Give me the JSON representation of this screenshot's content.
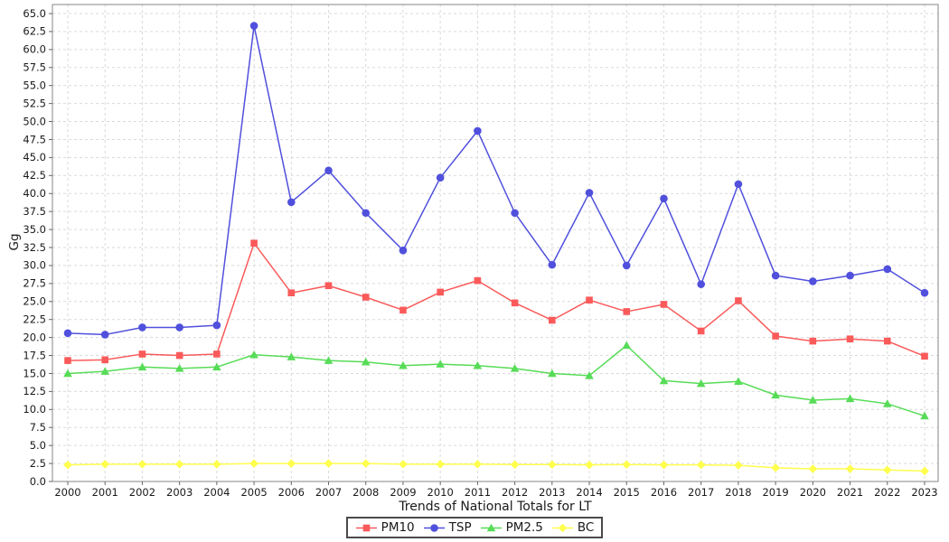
{
  "chart": {
    "y_axis_title": "Gg",
    "x_axis_title": "Trends of National Totals for LT"
  },
  "colors": {
    "background": "#ffffff",
    "grid": "#dadada",
    "plot_border": "#9a9a9a",
    "axis_tick": "#666666",
    "text": "#1a1a1a",
    "legend_border": "#4a4a4a"
  },
  "chart_data": {
    "type": "line",
    "xlabel": "Trends of National Totals for LT",
    "ylabel": "Gg",
    "x": [
      2000,
      2001,
      2002,
      2003,
      2004,
      2005,
      2006,
      2007,
      2008,
      2009,
      2010,
      2011,
      2012,
      2013,
      2014,
      2015,
      2016,
      2017,
      2018,
      2019,
      2020,
      2021,
      2022,
      2023
    ],
    "ylim": [
      0,
      65
    ],
    "ytick_step": 2.5,
    "ytick_decimals": 1,
    "grid": true,
    "legend_position": "bottom",
    "series": [
      {
        "name": "PM10",
        "marker": "square",
        "color": "#fa5a5a",
        "values": [
          16.8,
          16.9,
          17.7,
          17.5,
          17.7,
          33.1,
          26.2,
          27.2,
          25.6,
          23.8,
          26.3,
          27.9,
          24.8,
          22.4,
          25.2,
          23.6,
          24.6,
          20.9,
          25.1,
          20.2,
          19.5,
          19.8,
          19.5,
          17.4
        ]
      },
      {
        "name": "TSP",
        "marker": "circle",
        "color": "#5050dd",
        "values": [
          20.6,
          20.4,
          21.4,
          21.4,
          21.7,
          63.3,
          38.8,
          43.2,
          37.3,
          32.1,
          42.2,
          48.7,
          37.3,
          30.1,
          40.1,
          30.0,
          39.3,
          27.4,
          41.3,
          28.6,
          27.8,
          28.6,
          29.5,
          26.2
        ]
      },
      {
        "name": "PM2.5",
        "marker": "triangle",
        "color": "#57dc57",
        "values": [
          15.0,
          15.3,
          15.9,
          15.7,
          15.9,
          17.6,
          17.3,
          16.8,
          16.6,
          16.1,
          16.3,
          16.1,
          15.7,
          15.0,
          14.7,
          18.9,
          14.0,
          13.6,
          13.9,
          12.0,
          11.3,
          11.5,
          10.8,
          9.1
        ]
      },
      {
        "name": "BC",
        "marker": "diamond",
        "color": "#ffff4d",
        "values": [
          2.3,
          2.4,
          2.4,
          2.4,
          2.4,
          2.5,
          2.5,
          2.5,
          2.5,
          2.4,
          2.4,
          2.4,
          2.35,
          2.35,
          2.3,
          2.35,
          2.3,
          2.3,
          2.25,
          1.9,
          1.75,
          1.75,
          1.6,
          1.45
        ]
      }
    ]
  }
}
